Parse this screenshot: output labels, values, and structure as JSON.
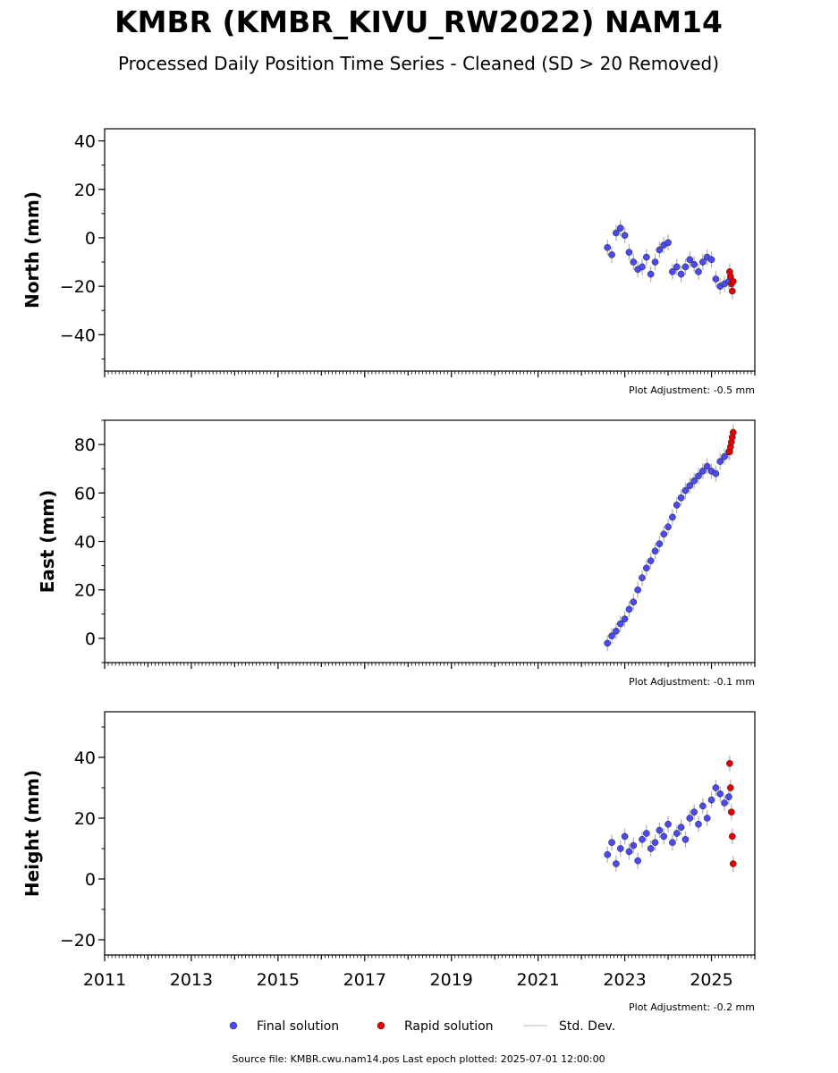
{
  "title": "KMBR (KMBR_KIVU_RW2022) NAM14",
  "subtitle": "Processed Daily Position Time Series - Cleaned (SD > 20 Removed)",
  "source_note": "Source file: KMBR.cwu.nam14.pos  Last epoch plotted: 2025-07-01 12:00:00",
  "legend": {
    "final": "Final solution",
    "rapid": "Rapid solution",
    "std": "Std. Dev."
  },
  "colors": {
    "final": "#4a4af0",
    "rapid": "#e60000",
    "std": "#b0b0b0"
  },
  "chart_data": [
    {
      "type": "scatter",
      "ylabel": "North (mm)",
      "adjustment": "Plot Adjustment: -0.5 mm",
      "xlim": [
        2011.0,
        2026.0
      ],
      "ylim": [
        -55,
        45
      ],
      "yticks": [
        40,
        20,
        0,
        -20,
        -40
      ],
      "ytick_labels": [
        "40",
        "20",
        "0",
        "−20",
        "−40"
      ],
      "series": [
        {
          "name": "Final solution",
          "x": [
            2022.6,
            2022.7,
            2022.8,
            2022.9,
            2023.0,
            2023.1,
            2023.2,
            2023.3,
            2023.4,
            2023.5,
            2023.6,
            2023.7,
            2023.8,
            2023.9,
            2024.0,
            2024.1,
            2024.2,
            2024.3,
            2024.4,
            2024.5,
            2024.6,
            2024.7,
            2024.8,
            2024.9,
            2025.0,
            2025.1,
            2025.2,
            2025.3,
            2025.4
          ],
          "y": [
            -4,
            -7,
            2,
            4,
            1,
            -6,
            -10,
            -13,
            -12,
            -8,
            -15,
            -10,
            -5,
            -3,
            -2,
            -14,
            -12,
            -15,
            -12,
            -9,
            -11,
            -14,
            -10,
            -8,
            -9,
            -17,
            -20,
            -19,
            -18
          ]
        },
        {
          "name": "Rapid solution",
          "x": [
            2025.42,
            2025.44,
            2025.46,
            2025.48,
            2025.5
          ],
          "y": [
            -14,
            -16,
            -19,
            -22,
            -18
          ]
        }
      ]
    },
    {
      "type": "scatter",
      "ylabel": "East (mm)",
      "adjustment": "Plot Adjustment: -0.1 mm",
      "xlim": [
        2011.0,
        2026.0
      ],
      "ylim": [
        -10,
        90
      ],
      "yticks": [
        80,
        60,
        40,
        20,
        0
      ],
      "ytick_labels": [
        "80",
        "60",
        "40",
        "20",
        "0"
      ],
      "series": [
        {
          "name": "Final solution",
          "x": [
            2022.6,
            2022.7,
            2022.8,
            2022.9,
            2023.0,
            2023.1,
            2023.2,
            2023.3,
            2023.4,
            2023.5,
            2023.6,
            2023.7,
            2023.8,
            2023.9,
            2024.0,
            2024.1,
            2024.2,
            2024.3,
            2024.4,
            2024.5,
            2024.6,
            2024.7,
            2024.8,
            2024.9,
            2025.0,
            2025.1,
            2025.2,
            2025.3,
            2025.4
          ],
          "y": [
            -2,
            1,
            3,
            6,
            8,
            12,
            15,
            20,
            25,
            29,
            32,
            36,
            39,
            43,
            46,
            50,
            55,
            58,
            61,
            63,
            65,
            67,
            69,
            71,
            69,
            68,
            73,
            75,
            77
          ]
        },
        {
          "name": "Rapid solution",
          "x": [
            2025.42,
            2025.44,
            2025.46,
            2025.48,
            2025.5
          ],
          "y": [
            77,
            79,
            81,
            83,
            85
          ]
        }
      ]
    },
    {
      "type": "scatter",
      "ylabel": "Height (mm)",
      "adjustment": "Plot Adjustment: -0.2 mm",
      "xlim": [
        2011.0,
        2026.0
      ],
      "ylim": [
        -25,
        55
      ],
      "yticks": [
        40,
        20,
        0,
        -20
      ],
      "ytick_labels": [
        "40",
        "20",
        "0",
        "−20"
      ],
      "xticks": [
        2011,
        2013,
        2015,
        2017,
        2019,
        2021,
        2023,
        2025
      ],
      "xtick_labels": [
        "2011",
        "2013",
        "2015",
        "2017",
        "2019",
        "2021",
        "2023",
        "2025"
      ],
      "series": [
        {
          "name": "Final solution",
          "x": [
            2022.6,
            2022.7,
            2022.8,
            2022.9,
            2023.0,
            2023.1,
            2023.2,
            2023.3,
            2023.4,
            2023.5,
            2023.6,
            2023.7,
            2023.8,
            2023.9,
            2024.0,
            2024.1,
            2024.2,
            2024.3,
            2024.4,
            2024.5,
            2024.6,
            2024.7,
            2024.8,
            2024.9,
            2025.0,
            2025.1,
            2025.2,
            2025.3,
            2025.4
          ],
          "y": [
            8,
            12,
            5,
            10,
            14,
            9,
            11,
            6,
            13,
            15,
            10,
            12,
            16,
            14,
            18,
            12,
            15,
            17,
            13,
            20,
            22,
            18,
            24,
            20,
            26,
            30,
            28,
            25,
            27
          ]
        },
        {
          "name": "Rapid solution",
          "x": [
            2025.42,
            2025.44,
            2025.46,
            2025.48,
            2025.5
          ],
          "y": [
            38,
            30,
            22,
            14,
            5
          ]
        }
      ]
    }
  ]
}
